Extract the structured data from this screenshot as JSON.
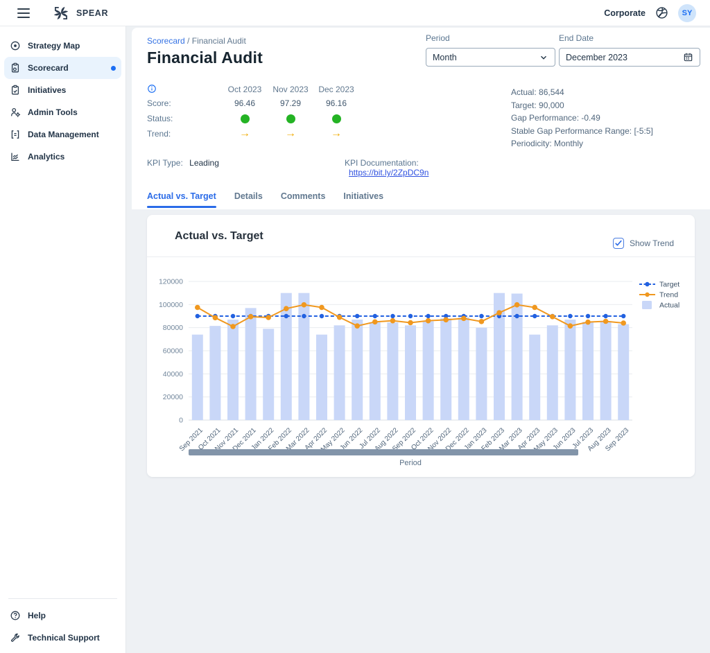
{
  "header": {
    "app_name": "SPEAR",
    "org_label": "Corporate",
    "avatar_initials": "SY"
  },
  "sidebar": {
    "items": [
      {
        "label": "Strategy Map",
        "icon": "target-icon",
        "active": false
      },
      {
        "label": "Scorecard",
        "icon": "scorecard-icon",
        "active": true,
        "notification_dot": true
      },
      {
        "label": "Initiatives",
        "icon": "clipboard-check-icon",
        "active": false
      },
      {
        "label": "Admin Tools",
        "icon": "user-gear-icon",
        "active": false
      },
      {
        "label": "Data Management",
        "icon": "data-brackets-icon",
        "active": false
      },
      {
        "label": "Analytics",
        "icon": "analytics-icon",
        "active": false
      }
    ],
    "footer_items": [
      {
        "label": "Help",
        "icon": "help-icon"
      },
      {
        "label": "Technical Support",
        "icon": "wrench-icon"
      }
    ]
  },
  "page": {
    "breadcrumb": {
      "parent": "Scorecard",
      "separator": "/",
      "current": "Financial Audit"
    },
    "title": "Financial Audit",
    "period": {
      "label": "Period",
      "value": "Month"
    },
    "end_date": {
      "label": "End Date",
      "value": "December 2023"
    },
    "kpi_summary": {
      "columns": [
        "Oct 2023",
        "Nov 2023",
        "Dec 2023"
      ],
      "score_label": "Score:",
      "scores": [
        "96.46",
        "97.29",
        "96.16"
      ],
      "status_label": "Status:",
      "status_color": "#24b324",
      "trend_label": "Trend:",
      "trend_arrow": "→",
      "trend_color": "#f0ab00"
    },
    "details": [
      {
        "label": "Actual:",
        "value": "86,544"
      },
      {
        "label": "Target:",
        "value": "90,000"
      },
      {
        "label": "Gap Performance:",
        "value": "-0.49"
      },
      {
        "label": "Stable Gap Performance Range:",
        "value": "[-5:5]"
      },
      {
        "label": "Periodicity:",
        "value": "Monthly"
      }
    ],
    "kpi_type": {
      "label": "KPI Type:",
      "value": "Leading"
    },
    "kpi_documentation": {
      "label": "KPI Documentation:",
      "link": "https://bit.ly/2ZpDC9n"
    },
    "tabs": [
      {
        "label": "Actual vs. Target",
        "active": true
      },
      {
        "label": "Details",
        "active": false
      },
      {
        "label": "Comments",
        "active": false
      },
      {
        "label": "Initiatives",
        "active": false
      }
    ]
  },
  "chart_card": {
    "title": "Actual vs. Target",
    "show_trend_label": "Show Trend",
    "show_trend_checked": true
  },
  "chart_data": {
    "type": "bar",
    "title": "Actual vs. Target",
    "xlabel": "Period",
    "ylabel": "",
    "ylim": [
      0,
      120000
    ],
    "yticks": [
      0,
      20000,
      40000,
      60000,
      80000,
      100000,
      120000
    ],
    "grid": true,
    "legend_position": "right",
    "categories": [
      "Sep 2021",
      "Oct 2021",
      "Nov 2021",
      "Dec 2021",
      "Jan 2022",
      "Feb 2022",
      "Mar 2022",
      "Apr 2022",
      "May 2022",
      "Jun 2022",
      "Jul 2022",
      "Aug 2022",
      "Sep 2022",
      "Oct 2022",
      "Nov 2022",
      "Dec 2022",
      "Jan 2023",
      "Feb 2023",
      "Mar 2023",
      "Apr 2023",
      "May 2023",
      "Jun 2023",
      "Jul 2023",
      "Aug 2023",
      "Sep 2023"
    ],
    "series": [
      {
        "name": "Target",
        "type": "line",
        "style": "dashed",
        "color": "#2261e0",
        "values": [
          90000,
          90000,
          90000,
          90000,
          90000,
          90000,
          90000,
          90000,
          90000,
          90000,
          90000,
          90000,
          90000,
          90000,
          90000,
          90000,
          90000,
          90000,
          90000,
          90000,
          90000,
          90000,
          90000,
          90000,
          90000
        ]
      },
      {
        "name": "Trend",
        "type": "line",
        "style": "solid",
        "color": "#f0981f",
        "values": [
          97500,
          88600,
          81000,
          89500,
          88800,
          96500,
          99800,
          97500,
          89000,
          81500,
          85000,
          86000,
          84300,
          86000,
          86800,
          88000,
          85300,
          92900,
          99800,
          97500,
          89500,
          81500,
          84800,
          85500,
          84000
        ]
      },
      {
        "name": "Actual",
        "type": "bar",
        "color": "#c9d7f8",
        "values": [
          74000,
          81500,
          87000,
          97000,
          79000,
          110000,
          110000,
          74000,
          82000,
          87000,
          84500,
          84500,
          82000,
          85500,
          88000,
          89000,
          80000,
          110000,
          109500,
          74000,
          82000,
          87000,
          85000,
          85000,
          83000
        ]
      }
    ]
  }
}
